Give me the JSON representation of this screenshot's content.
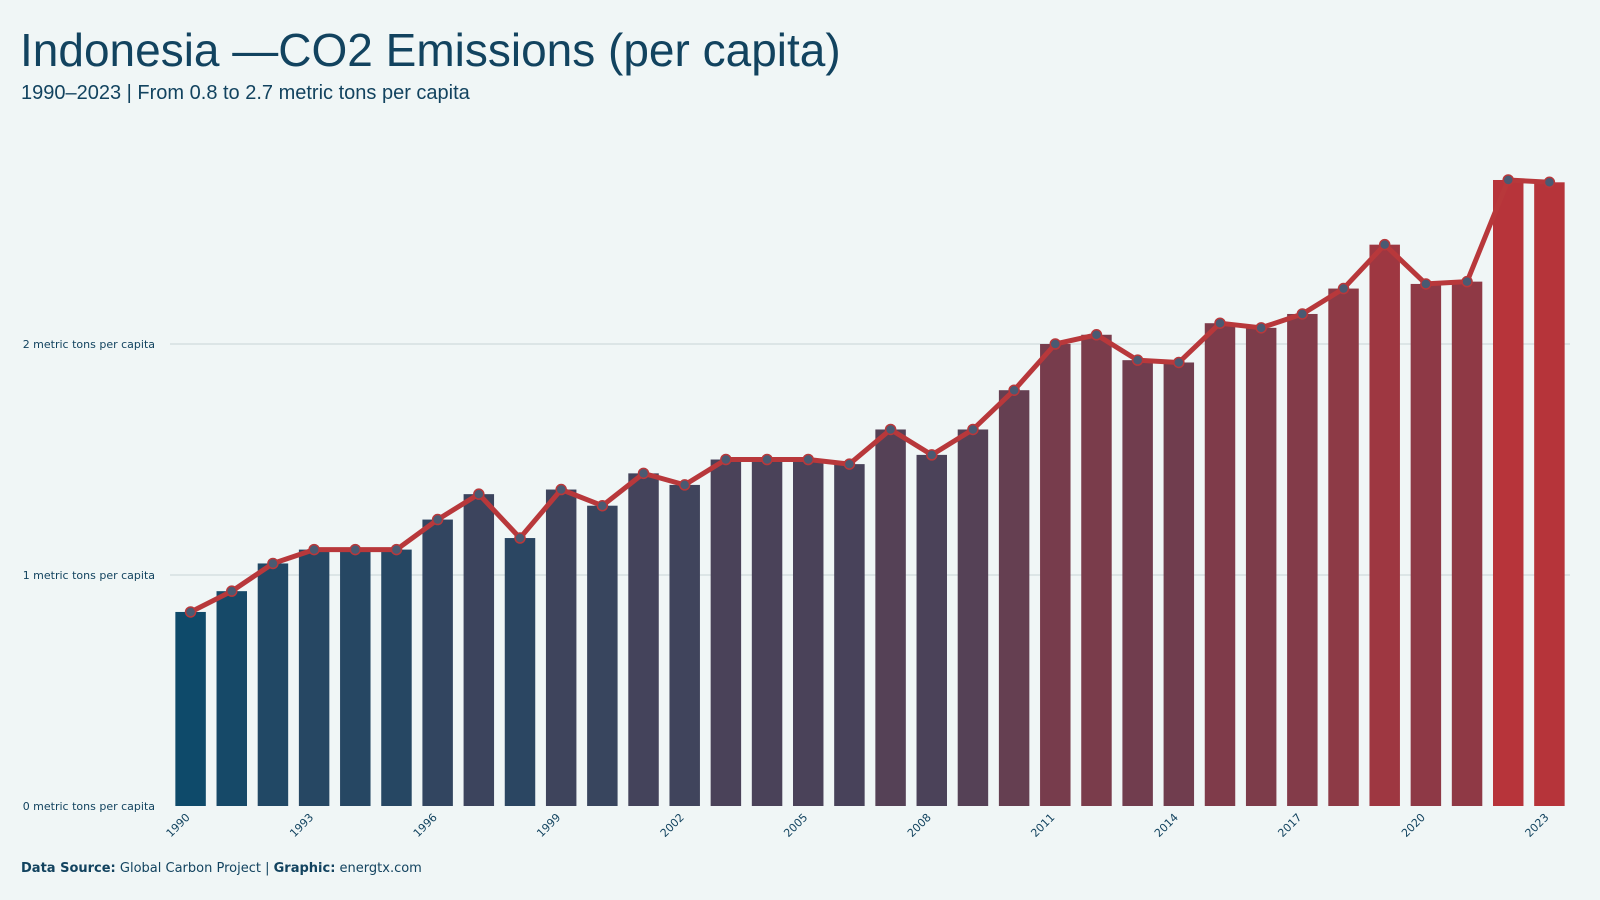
{
  "header": {
    "title": "Indonesia —CO2 Emissions (per capita)",
    "subtitle": "1990–2023 | From 0.8 to 2.7 metric tons per capita"
  },
  "footer": {
    "source_label": "Data Source:",
    "source_value": "Global Carbon Project",
    "separator": "|",
    "graphic_label": "Graphic:",
    "graphic_value": "energtx.com"
  },
  "colors": {
    "background": "#f0f6f6",
    "text": "#12435f",
    "bar_start": "#0e4a6a",
    "bar_end": "#b7343a",
    "line": "#b8383b",
    "marker_fill": "#4a5a72",
    "grid": "#d6dfe0"
  },
  "chart_data": {
    "type": "bar",
    "title": "Indonesia —CO2 Emissions (per capita)",
    "subtitle": "1990–2023 | From 0.8 to 2.7 metric tons per capita",
    "xlabel": "",
    "ylabel": "",
    "ylim": [
      0,
      2.7
    ],
    "y_ticks": [
      {
        "value": 0,
        "label": "0 metric tons per capita"
      },
      {
        "value": 1,
        "label": "1 metric tons per capita"
      },
      {
        "value": 2,
        "label": "2 metric tons per capita"
      }
    ],
    "x_tick_labels": [
      "1990",
      "1993",
      "1996",
      "1999",
      "2002",
      "2005",
      "2008",
      "2011",
      "2014",
      "2017",
      "2020",
      "2023"
    ],
    "grid": true,
    "categories": [
      "1990",
      "1991",
      "1992",
      "1993",
      "1994",
      "1995",
      "1996",
      "1997",
      "1998",
      "1999",
      "2000",
      "2001",
      "2002",
      "2003",
      "2004",
      "2005",
      "2006",
      "2007",
      "2008",
      "2009",
      "2010",
      "2011",
      "2012",
      "2013",
      "2014",
      "2015",
      "2016",
      "2017",
      "2018",
      "2019",
      "2020",
      "2021",
      "2022",
      "2023"
    ],
    "series": [
      {
        "values": [
          0.84,
          0.93,
          1.05,
          1.11,
          1.11,
          1.11,
          1.24,
          1.35,
          1.16,
          1.37,
          1.3,
          1.44,
          1.39,
          1.5,
          1.5,
          1.5,
          1.48,
          1.63,
          1.52,
          1.63,
          1.8,
          2.0,
          2.04,
          1.93,
          1.92,
          2.09,
          2.07,
          2.13,
          2.24,
          2.43,
          2.26,
          2.27,
          2.71,
          2.7
        ]
      }
    ],
    "overlay": "line-with-markers"
  }
}
